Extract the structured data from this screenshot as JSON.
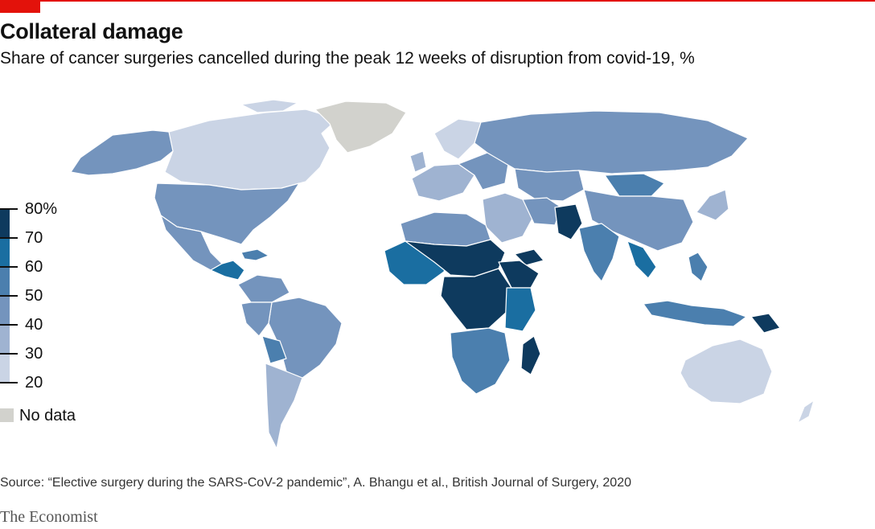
{
  "header": {
    "title": "Collateral damage",
    "subtitle": "Share of cancer surgeries cancelled during the peak 12 weeks of disruption from covid-19, %"
  },
  "legend": {
    "ticks": [
      "80%",
      "70",
      "60",
      "50",
      "40",
      "30",
      "20"
    ],
    "no_data_label": "No data"
  },
  "colors": {
    "accent": "#e3120b",
    "band_70_80": "#0e3a5e",
    "band_60_70": "#1a6ea1",
    "band_50_60": "#4b7fae",
    "band_40_50": "#7494bd",
    "band_30_40": "#9fb3d1",
    "band_20_30": "#cad4e5",
    "no_data": "#d2d2cd"
  },
  "footer": {
    "source": "Source: “Elective surgery during the SARS-CoV-2 pandemic”, A. Bhangu et al., British Journal of Surgery, 2020",
    "brand": "The Economist"
  }
}
